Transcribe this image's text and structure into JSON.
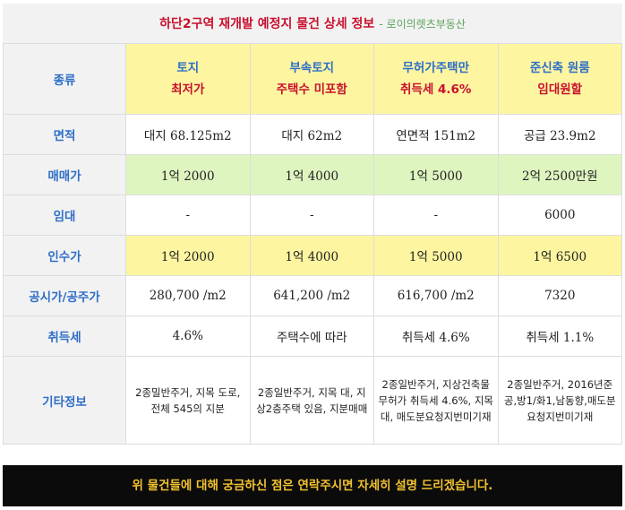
{
  "title": {
    "main": "하단2구역 재개발 예정지 물건 상세 정보",
    "sub": "- 로이의렛츠부동산"
  },
  "labels": {
    "type": "종류",
    "area": "면적",
    "sale_price": "매매가",
    "lease": "임대",
    "takeover_price": "인수가",
    "official_price": "공시가/공주가",
    "acquisition_tax": "취득세",
    "etc": "기타정보"
  },
  "properties": [
    {
      "type": "토지",
      "note": "최저가",
      "area": "대지 68.125m2",
      "sale_price": "1억 2000",
      "lease": "-",
      "takeover_price": "1억 2000",
      "official_price": "280,700 /m2",
      "acquisition_tax": "4.6%",
      "etc": "2종밀반주거, 지목 도로, 전체 545의 지분"
    },
    {
      "type": "부속토지",
      "note": "주택수 미포함",
      "area": "대지 62m2",
      "sale_price": "1억 4000",
      "lease": "-",
      "takeover_price": "1억 4000",
      "official_price": "641,200 /m2",
      "acquisition_tax": "주택수에 따라",
      "etc": "2종일반주거, 지목 대, 지상2층주택 있음, 지분매매"
    },
    {
      "type": "무허가주택만",
      "note": "취득세 4.6%",
      "area": "연면적 151m2",
      "sale_price": "1억 5000",
      "lease": "-",
      "takeover_price": "1억 5000",
      "official_price": "616,700 /m2",
      "acquisition_tax": "취득세 4.6%",
      "etc": "2종일반주거, 지상건축물무허가 취득세 4.6%, 지목 대, 매도분요청지번미기재"
    },
    {
      "type": "준신축 원룸",
      "note": "임대원할",
      "area": "공급 23.9m2",
      "sale_price": "2억 2500만원",
      "lease": "6000",
      "takeover_price": "1억 6500",
      "official_price": "7320",
      "acquisition_tax": "취득세 1.1%",
      "etc": "2종일반주거, 2016년준공,방1/화1,남동향,매도분요청지번미기재"
    }
  ],
  "footer": "위 물건들에 대해 궁금하신 점은 연락주시면 자세히 설명 드리겠습니다.",
  "colors": {
    "title_red": "#c8102e",
    "label_blue": "#2f6fc8",
    "highlight_yellow": "#fdf5a0",
    "highlight_green": "#dff5c0",
    "footer_bg": "#0b0b0b",
    "footer_text": "#f2c230"
  }
}
